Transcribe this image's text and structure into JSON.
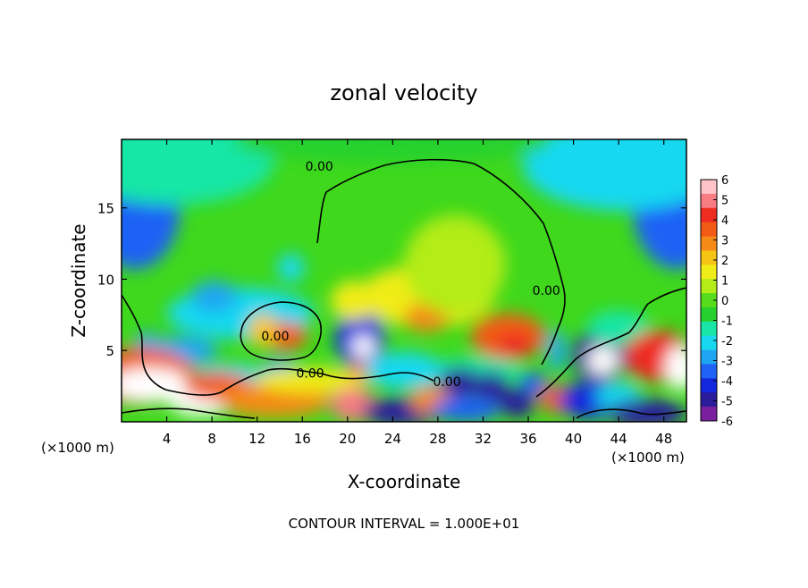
{
  "chart_data": {
    "type": "heatmap",
    "title": "zonal velocity",
    "xlabel": "X-coordinate",
    "ylabel": "Z-coordinate",
    "x_unit": "(×1000 m)",
    "x_ticks": [
      4,
      8,
      12,
      16,
      20,
      24,
      28,
      32,
      36,
      40,
      44,
      48
    ],
    "y_ticks": [
      5,
      10,
      15
    ],
    "xlim": [
      0,
      50
    ],
    "ylim": [
      0,
      19.8
    ],
    "footer": "CONTOUR INTERVAL = 1.000E+01",
    "colorbar": {
      "ticks": [
        6,
        5,
        4,
        3,
        2,
        1,
        0,
        -1,
        -2,
        -3,
        -4,
        -5,
        -6
      ],
      "range": [
        -6,
        6
      ],
      "colors": [
        "#7a1f9e",
        "#2a1d9c",
        "#1428e0",
        "#1f62f5",
        "#1fa6f2",
        "#18d8f0",
        "#19e6a6",
        "#26d12e",
        "#57dc1b",
        "#b3ec16",
        "#f0ec18",
        "#f6c415",
        "#f58a16",
        "#f25b16",
        "#ee2c20",
        "#f77c84",
        "#ffc3c8"
      ]
    },
    "contour_labels": [
      {
        "text": "0.00",
        "x": 17.5,
        "y": 17.6
      },
      {
        "text": "0.00",
        "x": 13.6,
        "y": 5.7
      },
      {
        "text": "0.00",
        "x": 16.7,
        "y": 3.1
      },
      {
        "text": "0.00",
        "x": 28.8,
        "y": 2.5
      },
      {
        "text": "0.00",
        "x": 37.6,
        "y": 8.9
      }
    ],
    "blobs": [
      {
        "x": 1.2,
        "y": 15.2,
        "rx": 4.0,
        "ry": 4.5,
        "v": -3.5
      },
      {
        "x": 49.2,
        "y": 15.2,
        "rx": 4.0,
        "ry": 4.5,
        "v": -3.6
      },
      {
        "x": 4.5,
        "y": 18.2,
        "rx": 9.0,
        "ry": 3.0,
        "v": -1.8
      },
      {
        "x": 44.5,
        "y": 18.0,
        "rx": 9.0,
        "ry": 3.2,
        "v": -1.9
      },
      {
        "x": 24.0,
        "y": 19.6,
        "rx": 14.0,
        "ry": 1.4,
        "v": -1.0
      },
      {
        "x": 10.5,
        "y": 7.6,
        "rx": 6.5,
        "ry": 1.8,
        "v": -2.2
      },
      {
        "x": 8.2,
        "y": 8.8,
        "rx": 2.0,
        "ry": 1.1,
        "v": -3.0
      },
      {
        "x": 15.0,
        "y": 10.8,
        "rx": 1.2,
        "ry": 1.0,
        "v": -2.6
      },
      {
        "x": 14.5,
        "y": 6.0,
        "rx": 1.9,
        "ry": 1.0,
        "v": 3.6
      },
      {
        "x": 12.5,
        "y": 6.4,
        "rx": 1.3,
        "ry": 1.2,
        "v": 2.0
      },
      {
        "x": 21.1,
        "y": 5.8,
        "rx": 2.2,
        "ry": 2.0,
        "v": -4.5
      },
      {
        "x": 21.4,
        "y": 5.3,
        "rx": 1.0,
        "ry": 0.8,
        "v": -6.2
      },
      {
        "x": 14.0,
        "y": 3.5,
        "rx": 1.8,
        "ry": 0.9,
        "v": -2.8
      },
      {
        "x": 2.3,
        "y": 5.5,
        "rx": 1.1,
        "ry": 0.8,
        "v": -3.0
      },
      {
        "x": 5.5,
        "y": 5.0,
        "rx": 3.0,
        "ry": 1.0,
        "v": -3.3
      },
      {
        "x": 1.0,
        "y": 3.8,
        "rx": 1.8,
        "ry": 1.0,
        "v": -3.0
      },
      {
        "x": 9.5,
        "y": 3.2,
        "rx": 3.0,
        "ry": 0.9,
        "v": -2.6
      },
      {
        "x": 27.0,
        "y": 8.8,
        "rx": 6.0,
        "ry": 2.2,
        "v": 1.6
      },
      {
        "x": 27.0,
        "y": 7.3,
        "rx": 2.0,
        "ry": 1.0,
        "v": 3.0
      },
      {
        "x": 20.5,
        "y": 8.5,
        "rx": 2.0,
        "ry": 1.4,
        "v": 1.2
      },
      {
        "x": 34.2,
        "y": 6.0,
        "rx": 3.3,
        "ry": 1.6,
        "v": 3.5
      },
      {
        "x": 34.8,
        "y": 5.3,
        "rx": 1.6,
        "ry": 0.9,
        "v": 4.6
      },
      {
        "x": 29.5,
        "y": 11.0,
        "rx": 4.5,
        "ry": 3.5,
        "v": 0.7
      },
      {
        "x": 31.5,
        "y": 3.6,
        "rx": 4.0,
        "ry": 1.0,
        "v": -1.8
      },
      {
        "x": 38.5,
        "y": 5.0,
        "rx": 0.8,
        "ry": 1.5,
        "v": -2.8
      },
      {
        "x": 42.3,
        "y": 4.6,
        "rx": 2.4,
        "ry": 1.9,
        "v": -5.2
      },
      {
        "x": 42.6,
        "y": 4.3,
        "rx": 1.4,
        "ry": 1.0,
        "v": -6.5
      },
      {
        "x": 44.0,
        "y": 6.6,
        "rx": 2.8,
        "ry": 1.2,
        "v": -1.6
      },
      {
        "x": 47.5,
        "y": 4.6,
        "rx": 3.0,
        "ry": 1.8,
        "v": 4.6
      },
      {
        "x": 49.5,
        "y": 3.8,
        "rx": 1.4,
        "ry": 1.6,
        "v": 7.0
      },
      {
        "x": 1.5,
        "y": 3.2,
        "rx": 5.0,
        "ry": 2.0,
        "v": 3.6
      },
      {
        "x": 2.5,
        "y": 2.6,
        "rx": 3.5,
        "ry": 1.2,
        "v": 6.5
      },
      {
        "x": 7.0,
        "y": 1.4,
        "rx": 2.8,
        "ry": 1.0,
        "v": 7.0
      },
      {
        "x": 8.5,
        "y": 2.5,
        "rx": 3.0,
        "ry": 1.0,
        "v": 3.5
      },
      {
        "x": 13.5,
        "y": 1.5,
        "rx": 5.0,
        "ry": 1.2,
        "v": 3.2
      },
      {
        "x": 16.8,
        "y": 2.9,
        "rx": 5.0,
        "ry": 0.9,
        "v": 1.7
      },
      {
        "x": 20.5,
        "y": 1.2,
        "rx": 2.0,
        "ry": 1.2,
        "v": 5.0
      },
      {
        "x": 22.0,
        "y": 3.6,
        "rx": 2.0,
        "ry": 0.7,
        "v": 3.0
      },
      {
        "x": 25.0,
        "y": 3.6,
        "rx": 3.5,
        "ry": 1.3,
        "v": -2.6
      },
      {
        "x": 24.8,
        "y": 0.7,
        "rx": 3.5,
        "ry": 1.0,
        "v": -5.0
      },
      {
        "x": 27.5,
        "y": 1.5,
        "rx": 2.0,
        "ry": 1.0,
        "v": 3.0
      },
      {
        "x": 30.0,
        "y": 2.8,
        "rx": 1.9,
        "ry": 1.0,
        "v": -5.5
      },
      {
        "x": 32.8,
        "y": 2.5,
        "rx": 1.5,
        "ry": 1.0,
        "v": -5.0
      },
      {
        "x": 30.5,
        "y": 0.9,
        "rx": 3.0,
        "ry": 0.9,
        "v": -3.8
      },
      {
        "x": 35.0,
        "y": 1.3,
        "rx": 1.6,
        "ry": 1.0,
        "v": -5.6
      },
      {
        "x": 36.4,
        "y": 2.7,
        "rx": 1.2,
        "ry": 0.8,
        "v": -4.0
      },
      {
        "x": 38.5,
        "y": 1.6,
        "rx": 1.5,
        "ry": 1.0,
        "v": 3.5
      },
      {
        "x": 41.5,
        "y": 1.5,
        "rx": 2.8,
        "ry": 1.3,
        "v": -4.5
      },
      {
        "x": 44.0,
        "y": 1.8,
        "rx": 2.0,
        "ry": 1.0,
        "v": -2.4
      },
      {
        "x": 46.5,
        "y": 0.6,
        "rx": 3.5,
        "ry": 1.0,
        "v": -5.5
      }
    ]
  }
}
